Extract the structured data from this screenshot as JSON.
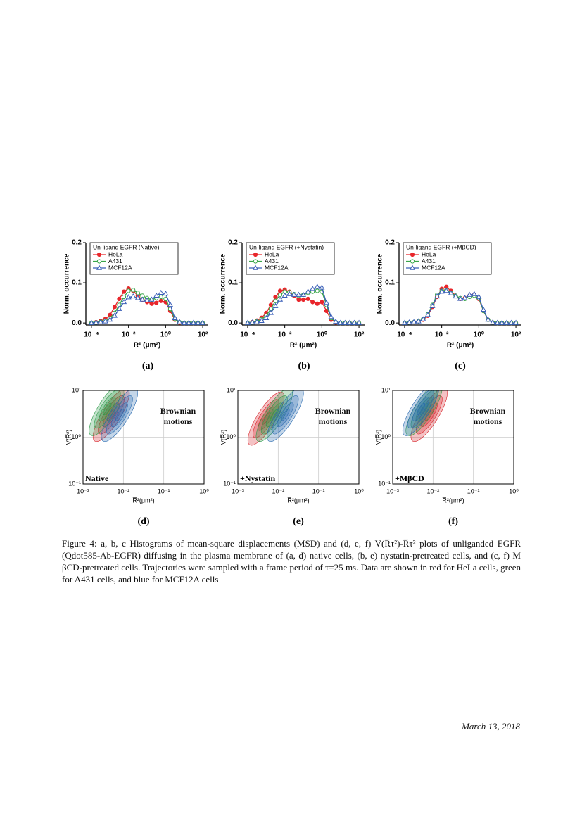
{
  "chart_data": [
    {
      "type": "line",
      "panel": "(a)",
      "legend_title": "Un-ligand EGFR (Native)",
      "ylabel": "Norm. occurrence",
      "xlabel": "R² (μm²)",
      "xscale": "log",
      "x": [
        0.0001,
        0.000178,
        0.000316,
        0.000562,
        0.001,
        0.00178,
        0.00316,
        0.00562,
        0.01,
        0.0178,
        0.0316,
        0.0562,
        0.1,
        0.178,
        0.316,
        0.562,
        1,
        1.78,
        3.16,
        5.62,
        10,
        17.8,
        31.6,
        56.2,
        100
      ],
      "xlim": [
        5e-05,
        200
      ],
      "xticks": [
        {
          "value": 0.0001,
          "label": "10⁻⁴"
        },
        {
          "value": 0.01,
          "label": "10⁻²"
        },
        {
          "value": 1,
          "label": "10⁰"
        },
        {
          "value": 100,
          "label": "10²"
        }
      ],
      "ylim": [
        -0.005,
        0.2
      ],
      "yticks": [
        {
          "value": 0,
          "label": "0.0"
        },
        0.1,
        0.2
      ],
      "series": [
        {
          "name": "HeLa",
          "color": "#e8262b",
          "marker": "circle-filled",
          "values": [
            0,
            0.002,
            0.005,
            0.01,
            0.02,
            0.04,
            0.06,
            0.078,
            0.086,
            0.08,
            0.068,
            0.058,
            0.052,
            0.048,
            0.05,
            0.055,
            0.052,
            0.03,
            0.008,
            0.001,
            0,
            0,
            0,
            0,
            0
          ]
        },
        {
          "name": "A431",
          "color": "#3aa64a",
          "marker": "circle-open",
          "values": [
            0,
            0.001,
            0.003,
            0.006,
            0.012,
            0.025,
            0.045,
            0.065,
            0.08,
            0.082,
            0.075,
            0.068,
            0.062,
            0.058,
            0.062,
            0.065,
            0.06,
            0.035,
            0.01,
            0.002,
            0,
            0,
            0,
            0,
            0
          ]
        },
        {
          "name": "MCF12A",
          "color": "#3a5fb8",
          "marker": "triangle-open",
          "values": [
            0,
            0.001,
            0.002,
            0.004,
            0.008,
            0.018,
            0.035,
            0.052,
            0.064,
            0.066,
            0.062,
            0.058,
            0.056,
            0.058,
            0.068,
            0.075,
            0.073,
            0.045,
            0.012,
            0.002,
            0,
            0,
            0,
            0,
            0
          ]
        }
      ]
    },
    {
      "type": "line",
      "panel": "(b)",
      "legend_title": "Un-ligand EGFR (+Nystatin)",
      "ylabel": "Norm. occurrence",
      "xlabel": "R² (μm²)",
      "xscale": "log",
      "x": [
        0.0001,
        0.000178,
        0.000316,
        0.000562,
        0.001,
        0.00178,
        0.00316,
        0.00562,
        0.01,
        0.0178,
        0.0316,
        0.0562,
        0.1,
        0.178,
        0.316,
        0.562,
        1,
        1.78,
        3.16,
        5.62,
        10,
        17.8,
        31.6,
        56.2,
        100
      ],
      "xlim": [
        5e-05,
        200
      ],
      "xticks": [
        {
          "value": 0.0001,
          "label": "10⁻⁴"
        },
        {
          "value": 0.01,
          "label": "10⁻²"
        },
        {
          "value": 1,
          "label": "10⁰"
        },
        {
          "value": 100,
          "label": "10²"
        }
      ],
      "ylim": [
        -0.005,
        0.2
      ],
      "yticks": [
        {
          "value": 0,
          "label": "0.0"
        },
        0.1,
        0.2
      ],
      "series": [
        {
          "name": "HeLa",
          "color": "#e8262b",
          "marker": "circle-filled",
          "values": [
            0,
            0.002,
            0.006,
            0.013,
            0.025,
            0.045,
            0.065,
            0.08,
            0.083,
            0.078,
            0.068,
            0.058,
            0.058,
            0.06,
            0.052,
            0.048,
            0.052,
            0.03,
            0.008,
            0.001,
            0,
            0,
            0,
            0,
            0
          ]
        },
        {
          "name": "A431",
          "color": "#3aa64a",
          "marker": "circle-open",
          "values": [
            0,
            0.001,
            0.004,
            0.009,
            0.018,
            0.035,
            0.055,
            0.07,
            0.078,
            0.077,
            0.072,
            0.068,
            0.07,
            0.075,
            0.078,
            0.08,
            0.078,
            0.045,
            0.012,
            0.002,
            0,
            0,
            0,
            0,
            0
          ]
        },
        {
          "name": "MCF12A",
          "color": "#3a5fb8",
          "marker": "triangle-open",
          "values": [
            0,
            0.001,
            0.002,
            0.005,
            0.012,
            0.025,
            0.042,
            0.058,
            0.068,
            0.072,
            0.07,
            0.07,
            0.07,
            0.078,
            0.085,
            0.09,
            0.088,
            0.05,
            0.015,
            0.003,
            0,
            0,
            0,
            0,
            0
          ]
        }
      ]
    },
    {
      "type": "line",
      "panel": "(c)",
      "legend_title": "Un-ligand EGFR (+MβCD)",
      "ylabel": "Norm. occurrence",
      "xlabel": "R² (μm²)",
      "xscale": "log",
      "x": [
        0.0001,
        0.000178,
        0.000316,
        0.000562,
        0.001,
        0.00178,
        0.00316,
        0.00562,
        0.01,
        0.0178,
        0.0316,
        0.0562,
        0.1,
        0.178,
        0.316,
        0.562,
        1,
        1.78,
        3.16,
        5.62,
        10,
        17.8,
        31.6,
        56.2,
        100
      ],
      "xlim": [
        5e-05,
        200
      ],
      "xticks": [
        {
          "value": 0.0001,
          "label": "10⁻⁴"
        },
        {
          "value": 0.01,
          "label": "10⁻²"
        },
        {
          "value": 1,
          "label": "10⁰"
        },
        {
          "value": 100,
          "label": "10²"
        }
      ],
      "ylim": [
        -0.005,
        0.2
      ],
      "yticks": [
        {
          "value": 0,
          "label": "0.0"
        },
        0.1,
        0.2
      ],
      "series": [
        {
          "name": "HeLa",
          "color": "#e8262b",
          "marker": "circle-filled",
          "values": [
            0,
            0.001,
            0.002,
            0.004,
            0.008,
            0.018,
            0.04,
            0.065,
            0.085,
            0.09,
            0.08,
            0.068,
            0.06,
            0.062,
            0.068,
            0.07,
            0.06,
            0.03,
            0.008,
            0.001,
            0,
            0,
            0,
            0,
            0
          ]
        },
        {
          "name": "A431",
          "color": "#3aa64a",
          "marker": "circle-open",
          "values": [
            0,
            0.001,
            0.002,
            0.004,
            0.01,
            0.022,
            0.045,
            0.07,
            0.08,
            0.082,
            0.075,
            0.068,
            0.062,
            0.06,
            0.065,
            0.068,
            0.062,
            0.03,
            0.008,
            0.001,
            0,
            0,
            0,
            0,
            0
          ]
        },
        {
          "name": "MCF12A",
          "color": "#3a5fb8",
          "marker": "triangle-open",
          "values": [
            0,
            0.001,
            0.002,
            0.004,
            0.009,
            0.02,
            0.042,
            0.066,
            0.078,
            0.08,
            0.074,
            0.066,
            0.06,
            0.062,
            0.07,
            0.072,
            0.065,
            0.033,
            0.008,
            0.001,
            0,
            0,
            0,
            0,
            0
          ]
        }
      ]
    },
    {
      "type": "contour",
      "panel": "(d)",
      "condition": "Native",
      "annotation": "Brownian motions",
      "threshold": 2,
      "ylabel": "V(R̅²)",
      "xlabel": "R̅²(μm²)",
      "xscale": "log",
      "yscale": "log",
      "grid": true,
      "xlim": [
        0.001,
        1
      ],
      "xticks": [
        {
          "value": 0.001,
          "label": "10⁻³"
        },
        {
          "value": 0.01,
          "label": "10⁻²"
        },
        {
          "value": 0.1,
          "label": "10⁻¹"
        },
        {
          "value": 1,
          "label": "10⁰"
        }
      ],
      "ylim": [
        0.1,
        10
      ],
      "yticks": [
        {
          "value": 0.1,
          "label": "10⁻¹"
        },
        {
          "value": 1,
          "label": "10⁰"
        },
        {
          "value": 10,
          "label": "10¹"
        }
      ],
      "series": [
        {
          "name": "HeLa",
          "color": "#d8232a",
          "x": [
            0.005
          ],
          "values": [
            3
          ]
        },
        {
          "name": "A431",
          "color": "#2f9a4a",
          "x": [
            0.004
          ],
          "values": [
            4
          ]
        },
        {
          "name": "MCF12A",
          "color": "#2a6bb0",
          "x": [
            0.008
          ],
          "values": [
            3
          ]
        }
      ]
    },
    {
      "type": "contour",
      "panel": "(e)",
      "condition": "+Nystatin",
      "annotation": "Brownian motions",
      "threshold": 2,
      "ylabel": "V(R̅²)",
      "xlabel": "R̅²(μm²)",
      "xscale": "log",
      "yscale": "log",
      "grid": true,
      "xlim": [
        0.001,
        1
      ],
      "xticks": [
        {
          "value": 0.001,
          "label": "10⁻³"
        },
        {
          "value": 0.01,
          "label": "10⁻²"
        },
        {
          "value": 0.1,
          "label": "10⁻¹"
        },
        {
          "value": 1,
          "label": "10⁰"
        }
      ],
      "ylim": [
        0.1,
        10
      ],
      "yticks": [
        {
          "value": 0.1,
          "label": "10⁻¹"
        },
        {
          "value": 1,
          "label": "10⁰"
        },
        {
          "value": 10,
          "label": "10¹"
        }
      ],
      "series": [
        {
          "name": "HeLa",
          "color": "#d8232a",
          "x": [
            0.005
          ],
          "values": [
            2.5
          ]
        },
        {
          "name": "A431",
          "color": "#2f9a4a",
          "x": [
            0.008
          ],
          "values": [
            3
          ]
        },
        {
          "name": "MCF12A",
          "color": "#2a6bb0",
          "x": [
            0.015
          ],
          "values": [
            3
          ]
        }
      ]
    },
    {
      "type": "contour",
      "panel": "(f)",
      "condition": "+MβCD",
      "annotation": "Brownian motions",
      "threshold": 2,
      "ylabel": "V(R̅²)",
      "xlabel": "R̅²(μm²)",
      "xscale": "log",
      "yscale": "log",
      "grid": true,
      "xlim": [
        0.001,
        1
      ],
      "xticks": [
        {
          "value": 0.001,
          "label": "10⁻³"
        },
        {
          "value": 0.01,
          "label": "10⁻²"
        },
        {
          "value": 0.1,
          "label": "10⁻¹"
        },
        {
          "value": 1,
          "label": "10⁰"
        }
      ],
      "ylim": [
        0.1,
        10
      ],
      "yticks": [
        {
          "value": 0.1,
          "label": "10⁻¹"
        },
        {
          "value": 1,
          "label": "10⁰"
        },
        {
          "value": 10,
          "label": "10¹"
        }
      ],
      "series": [
        {
          "name": "HeLa",
          "color": "#d8232a",
          "x": [
            0.008
          ],
          "values": [
            3
          ]
        },
        {
          "name": "A431",
          "color": "#2f9a4a",
          "x": [
            0.006
          ],
          "values": [
            4
          ]
        },
        {
          "name": "MCF12A",
          "color": "#2a6bb0",
          "x": [
            0.005
          ],
          "values": [
            4
          ]
        }
      ]
    }
  ],
  "caption": "Figure 4: a, b, c Histograms of mean-square displacements (MSD) and (d, e, f) V(R̅τ²)-R̅τ² plots of unliganded EGFR (Qdot585-Ab-EGFR) diffusing in the plasma membrane of (a, d) native cells, (b, e) nystatin-pretreated cells, and (c, f) M βCD-pretreated cells. Trajectories were sampled with a frame period of τ=25 ms. Data are shown in red for HeLa cells, green for A431 cells, and blue for MCF12A cells",
  "footer_date": "March 13, 2018"
}
